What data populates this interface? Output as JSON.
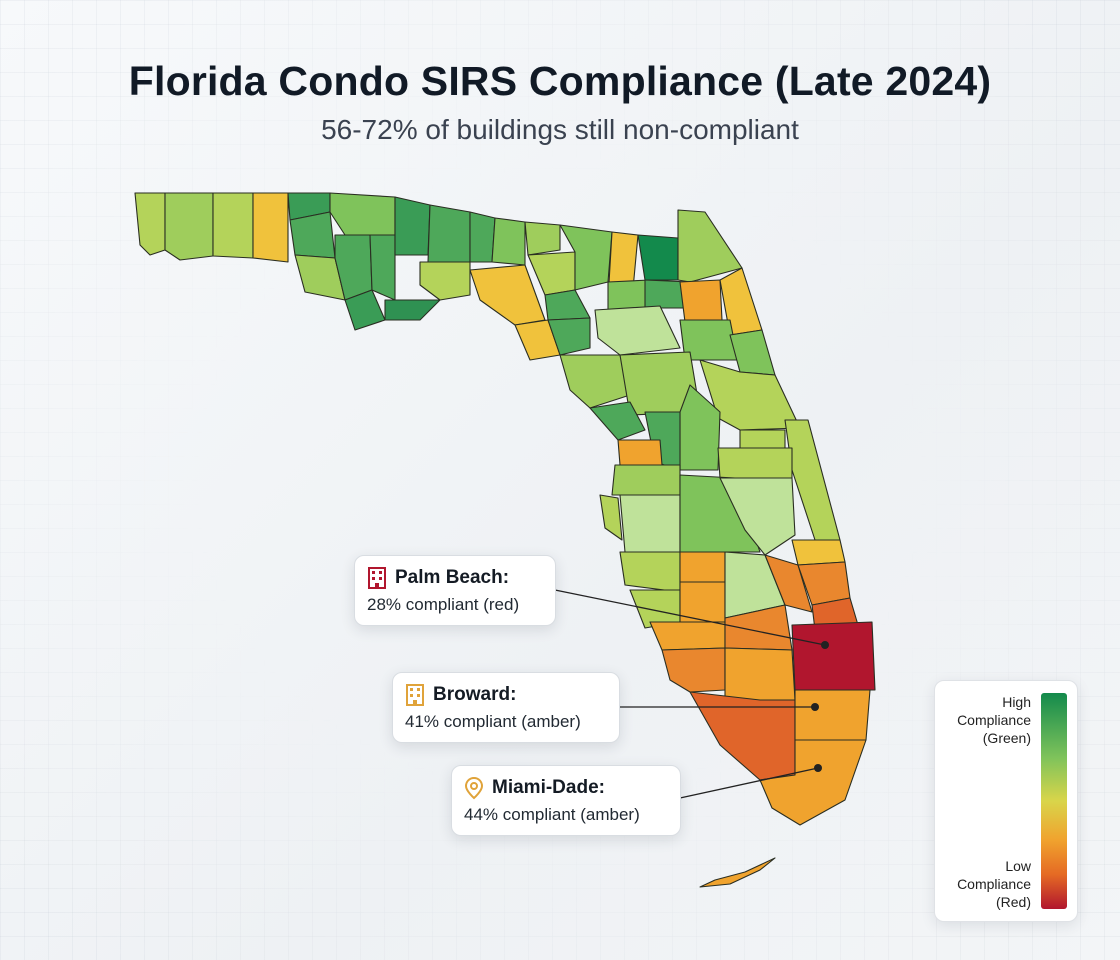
{
  "title": "Florida Condo SIRS Compliance (Late 2024)",
  "subtitle": "56-72% of buildings still non-compliant",
  "callouts": {
    "palm_beach": {
      "name": "Palm Beach:",
      "value": "28% compliant (red)",
      "color": "#b1162e"
    },
    "broward": {
      "name": "Broward:",
      "value": "41% compliant (amber)",
      "color": "#e0a33a"
    },
    "miami_dade": {
      "name": "Miami-Dade:",
      "value": "44% compliant (amber)",
      "color": "#e0a33a"
    }
  },
  "legend": {
    "high": [
      "High",
      "Compliance",
      "(Green)"
    ],
    "low": [
      "Low",
      "Compliance",
      "(Red)"
    ]
  },
  "colors": {
    "dark_green": "#138a4c",
    "green": "#4ea85a",
    "mid_green": "#7fc35b",
    "yellow_green": "#b4d35a",
    "light_green": "#bfe29a",
    "yellow": "#dbcf4a",
    "gold": "#f0c23c",
    "amber": "#f0a32e",
    "orange": "#e9872e",
    "dark_orange": "#e0652a",
    "red": "#b1162e"
  }
}
